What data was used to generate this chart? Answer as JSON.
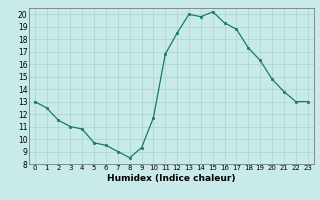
{
  "x": [
    0,
    1,
    2,
    3,
    4,
    5,
    6,
    7,
    8,
    9,
    10,
    11,
    12,
    13,
    14,
    15,
    16,
    17,
    18,
    19,
    20,
    21,
    22,
    23
  ],
  "y": [
    13,
    12.5,
    11.5,
    11,
    10.8,
    9.7,
    9.5,
    9,
    8.5,
    9.3,
    11.7,
    16.8,
    18.5,
    20,
    19.8,
    20.2,
    19.3,
    18.8,
    17.3,
    16.3,
    14.8,
    13.8,
    13.0,
    13.0
  ],
  "line_color": "#1a7a6a",
  "marker_color": "#1a7a6a",
  "bg_color": "#c8eae8",
  "grid_color": "#aad4d0",
  "xlabel": "Humidex (Indice chaleur)",
  "xlim": [
    -0.5,
    23.5
  ],
  "ylim": [
    8,
    20.5
  ],
  "xticks": [
    0,
    1,
    2,
    3,
    4,
    5,
    6,
    7,
    8,
    9,
    10,
    11,
    12,
    13,
    14,
    15,
    16,
    17,
    18,
    19,
    20,
    21,
    22,
    23
  ],
  "yticks": [
    8,
    9,
    10,
    11,
    12,
    13,
    14,
    15,
    16,
    17,
    18,
    19,
    20
  ]
}
